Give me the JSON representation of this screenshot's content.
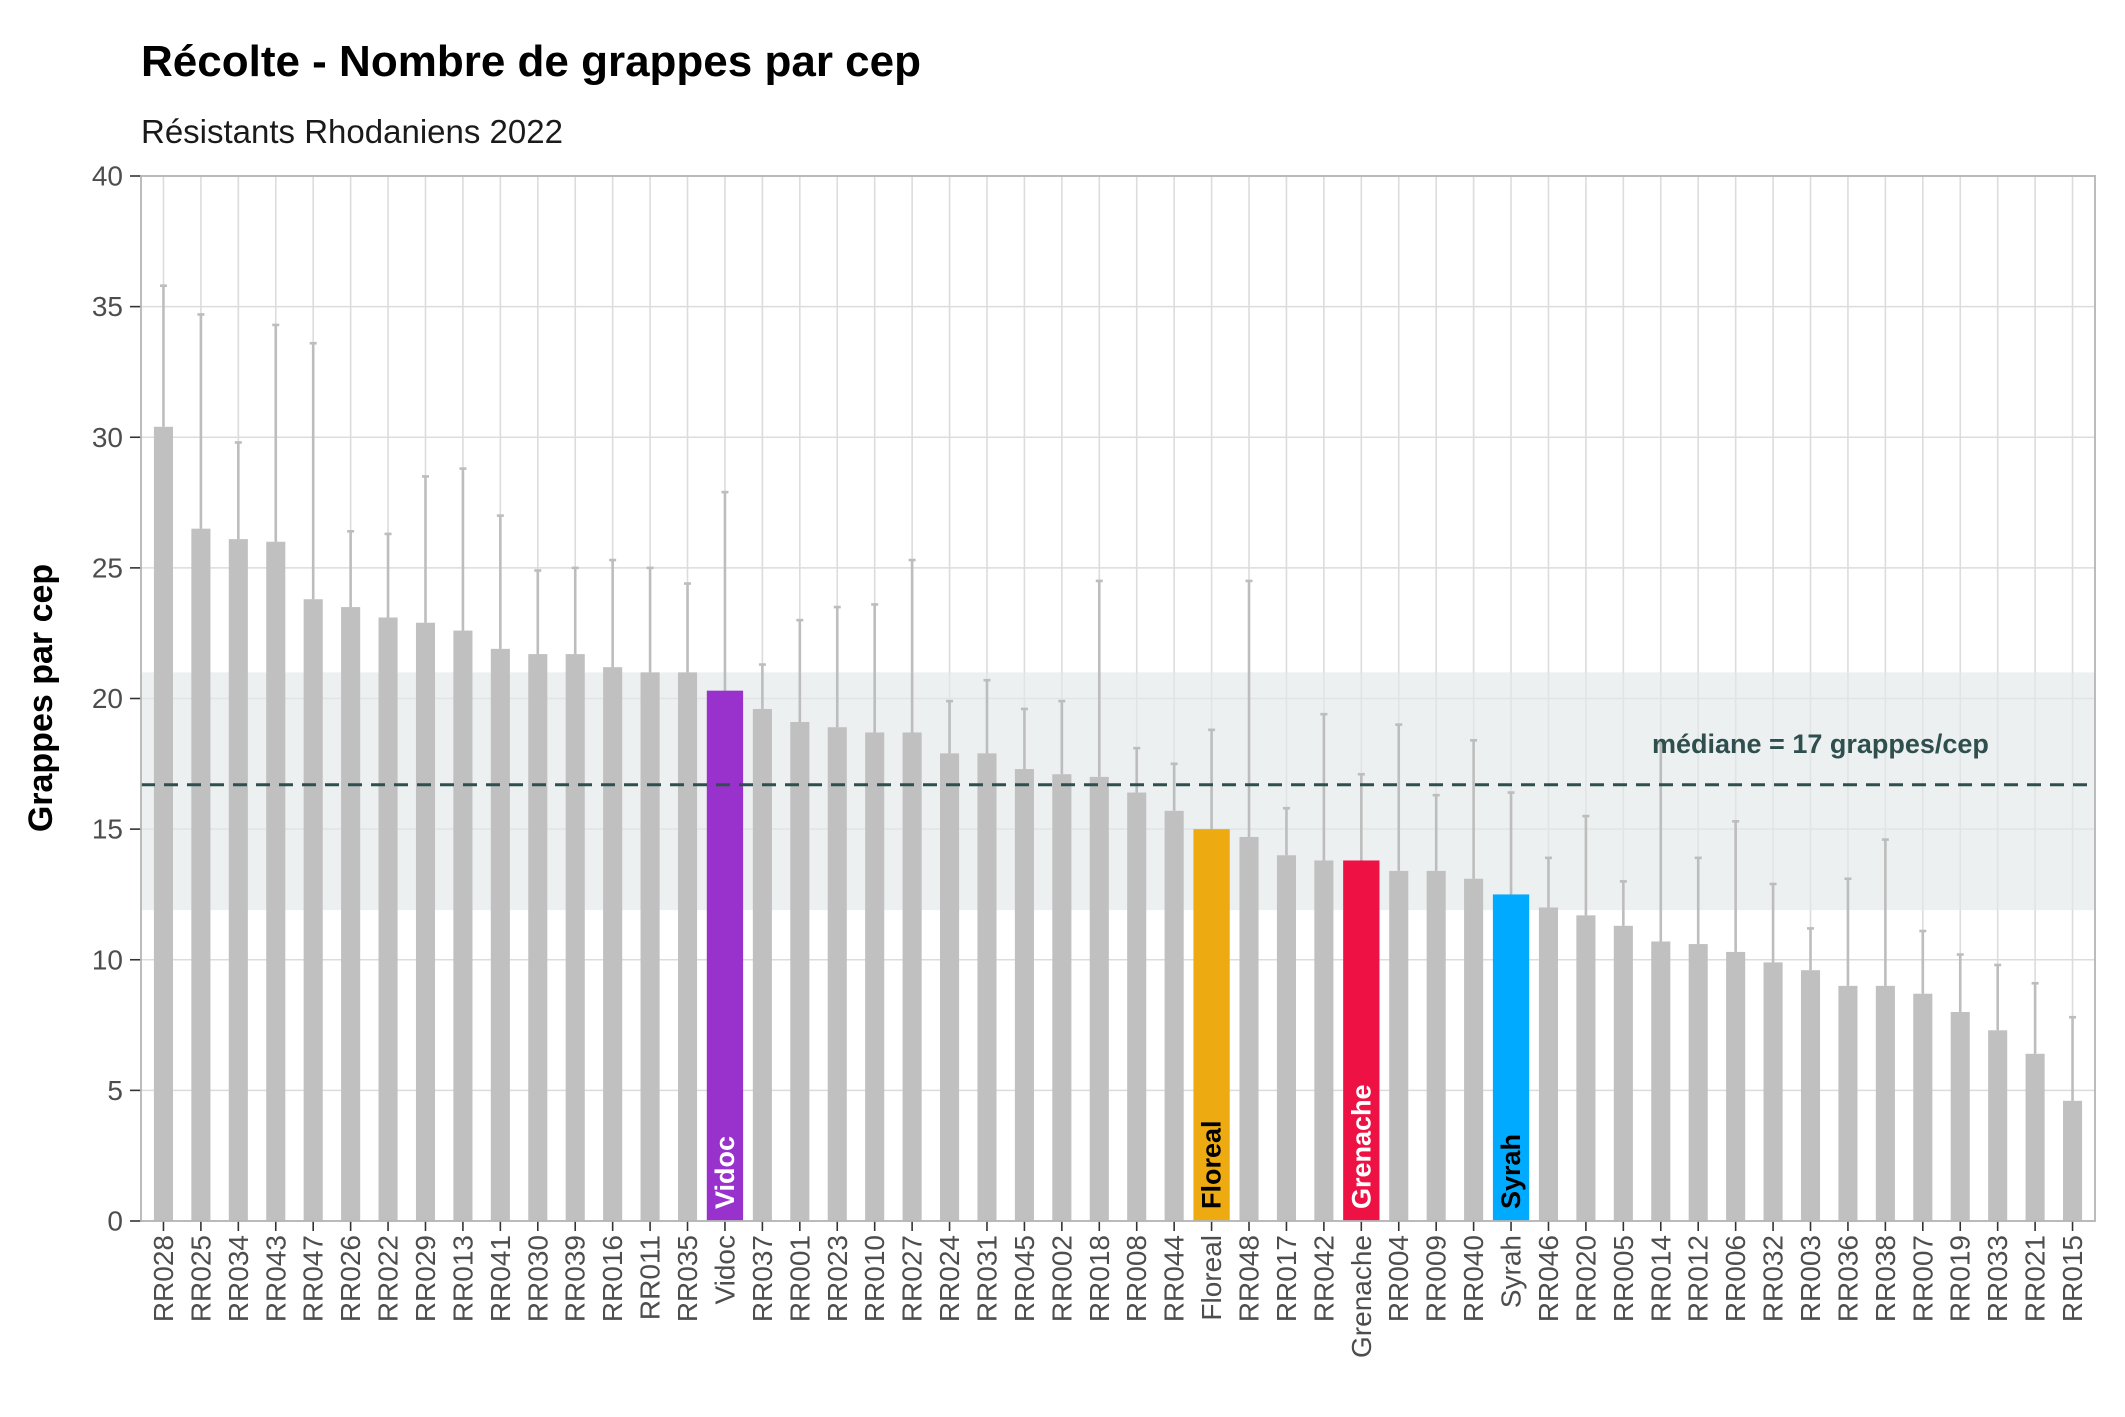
{
  "chart_data": {
    "type": "bar",
    "title": "Récolte - Nombre de grappes par cep",
    "subtitle": "Résistants Rhodaniens 2022",
    "ylabel": "Grappes par cep",
    "ylim": [
      0,
      40
    ],
    "yticks": [
      0,
      5,
      10,
      15,
      20,
      25,
      30,
      35,
      40
    ],
    "grid": true,
    "categories": [
      "RR028",
      "RR025",
      "RR034",
      "RR043",
      "RR047",
      "RR026",
      "RR022",
      "RR029",
      "RR013",
      "RR041",
      "RR030",
      "RR039",
      "RR016",
      "RR011",
      "RR035",
      "Vidoc",
      "RR037",
      "RR001",
      "RR023",
      "RR010",
      "RR027",
      "RR024",
      "RR031",
      "RR045",
      "RR002",
      "RR018",
      "RR008",
      "RR044",
      "Floreal",
      "RR048",
      "RR017",
      "RR042",
      "Grenache",
      "RR004",
      "RR009",
      "RR040",
      "Syrah",
      "RR046",
      "RR020",
      "RR005",
      "RR014",
      "RR012",
      "RR006",
      "RR032",
      "RR003",
      "RR036",
      "RR038",
      "RR007",
      "RR019",
      "RR033",
      "RR021",
      "RR015"
    ],
    "values": [
      30.4,
      26.5,
      26.1,
      26.0,
      23.8,
      23.5,
      23.1,
      22.9,
      22.6,
      21.9,
      21.7,
      21.7,
      21.2,
      21.0,
      21.0,
      20.3,
      19.6,
      19.1,
      18.9,
      18.7,
      18.7,
      17.9,
      17.9,
      17.3,
      17.1,
      17.0,
      16.4,
      15.7,
      15.0,
      14.7,
      14.0,
      13.8,
      13.8,
      13.4,
      13.4,
      13.1,
      12.5,
      12.0,
      11.7,
      11.3,
      10.7,
      10.6,
      10.3,
      9.9,
      9.6,
      9.0,
      9.0,
      8.7,
      8.0,
      7.3,
      6.4,
      4.6
    ],
    "error_top": [
      35.8,
      34.7,
      29.8,
      34.3,
      33.6,
      26.4,
      26.3,
      28.5,
      28.8,
      27.0,
      24.9,
      25.0,
      25.3,
      25.0,
      24.4,
      27.9,
      21.3,
      23.0,
      23.5,
      23.6,
      25.3,
      19.9,
      20.7,
      19.6,
      19.9,
      24.5,
      18.1,
      17.5,
      18.8,
      24.5,
      15.8,
      19.4,
      17.1,
      19.0,
      16.3,
      18.4,
      16.4,
      13.9,
      15.5,
      13.0,
      18.3,
      13.9,
      15.3,
      12.9,
      11.2,
      13.1,
      14.6,
      11.1,
      10.2,
      9.8,
      9.1,
      7.8
    ],
    "bar_color": "#C0C0C0",
    "errorbar_color": "#BDBDBD",
    "highlights": [
      {
        "category": "Vidoc",
        "label": "Vidoc",
        "color": "#9932CC",
        "label_color": "#FFFFFF"
      },
      {
        "category": "Floreal",
        "label": "Floreal",
        "color": "#EEAA11",
        "label_color": "#000000"
      },
      {
        "category": "Grenache",
        "label": "Grenache",
        "color": "#EE1144",
        "label_color": "#FFFFFF"
      },
      {
        "category": "Syrah",
        "label": "Syrah",
        "color": "#00AAFF",
        "label_color": "#000000"
      }
    ],
    "reference_band": {
      "low": 11.9,
      "high": 21.0,
      "color": "#E2E8E8"
    },
    "median_line": {
      "value": 16.7,
      "label": "médiane = 17 grappes/cep",
      "color": "#2F4F4F",
      "style": "dashed"
    }
  }
}
